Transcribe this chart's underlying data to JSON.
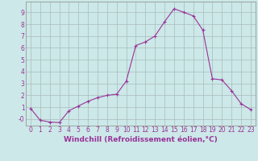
{
  "x": [
    0,
    1,
    2,
    3,
    4,
    5,
    6,
    7,
    8,
    9,
    10,
    11,
    12,
    13,
    14,
    15,
    16,
    17,
    18,
    19,
    20,
    21,
    22,
    23
  ],
  "y": [
    0.9,
    -0.1,
    -0.25,
    -0.3,
    0.7,
    1.1,
    1.5,
    1.8,
    2.0,
    2.1,
    3.2,
    6.2,
    6.5,
    7.0,
    8.2,
    9.3,
    9.0,
    8.7,
    7.5,
    3.4,
    3.3,
    2.4,
    1.3,
    0.8
  ],
  "line_color": "#993399",
  "marker": "+",
  "marker_size": 3,
  "bg_color": "#cce8e8",
  "grid_color": "#aabbbb",
  "xlabel": "Windchill (Refroidissement éolien,°C)",
  "ylabel_ticks": [
    0,
    1,
    2,
    3,
    4,
    5,
    6,
    7,
    8,
    9
  ],
  "ytick_labels": [
    "-0",
    "1",
    "2",
    "3",
    "4",
    "5",
    "6",
    "7",
    "8",
    "9"
  ],
  "xlim": [
    -0.5,
    23.5
  ],
  "ylim": [
    -0.55,
    9.9
  ],
  "xlabel_color": "#993399",
  "tick_color": "#993399",
  "tick_fontsize": 5.5,
  "xlabel_fontsize": 6.5
}
